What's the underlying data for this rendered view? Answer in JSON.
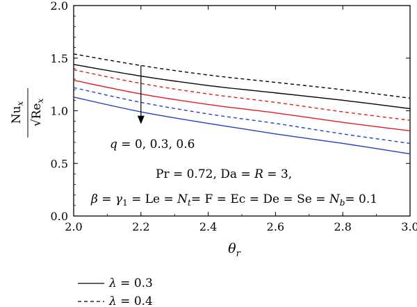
{
  "chart_data": {
    "type": "line",
    "xlabel": "θr",
    "ylabel": "Nux / √Rex",
    "xlim": [
      2.0,
      3.0
    ],
    "ylim": [
      0.0,
      2.0
    ],
    "x_ticks": [
      "2.0",
      "2.2",
      "2.4",
      "2.6",
      "2.8",
      "3.0"
    ],
    "y_ticks": [
      "0.0",
      "0.5",
      "1.0",
      "1.5",
      "2.0"
    ],
    "grid": false,
    "legend_position": "bottom-left",
    "x": [
      2.0,
      2.2,
      2.4,
      2.6,
      2.8,
      3.0
    ],
    "series": [
      {
        "color": "#000000",
        "style": "solid",
        "values": [
          1.44,
          1.33,
          1.24,
          1.17,
          1.1,
          1.02
        ]
      },
      {
        "color": "#000000",
        "style": "dashed",
        "values": [
          1.54,
          1.43,
          1.34,
          1.27,
          1.2,
          1.12
        ]
      },
      {
        "color": "#e31a1c",
        "style": "solid",
        "values": [
          1.29,
          1.16,
          1.06,
          0.98,
          0.89,
          0.81
        ]
      },
      {
        "color": "#e31a1c",
        "style": "dashed",
        "values": [
          1.39,
          1.26,
          1.16,
          1.08,
          0.99,
          0.91
        ]
      },
      {
        "color": "#1f3fcf",
        "style": "solid",
        "values": [
          1.13,
          0.99,
          0.88,
          0.78,
          0.69,
          0.59
        ]
      },
      {
        "color": "#1f3fcf",
        "style": "dashed",
        "values": [
          1.22,
          1.08,
          0.97,
          0.88,
          0.78,
          0.69
        ]
      }
    ],
    "arrow": {
      "x": 2.2,
      "y_start": 1.43,
      "y_end": 0.88,
      "label": "q = 0, 0.3, 0.6"
    },
    "annotations": {
      "line1": "Pr = 0.72, Da = R = 3,",
      "line2": "β = γ1 = Le = Nt = F = Ec = De = Se = Nb = 0.1"
    },
    "legend": [
      {
        "label": "λ = 0.3",
        "style": "solid"
      },
      {
        "label": "λ = 0.4",
        "style": "dashed"
      }
    ]
  }
}
